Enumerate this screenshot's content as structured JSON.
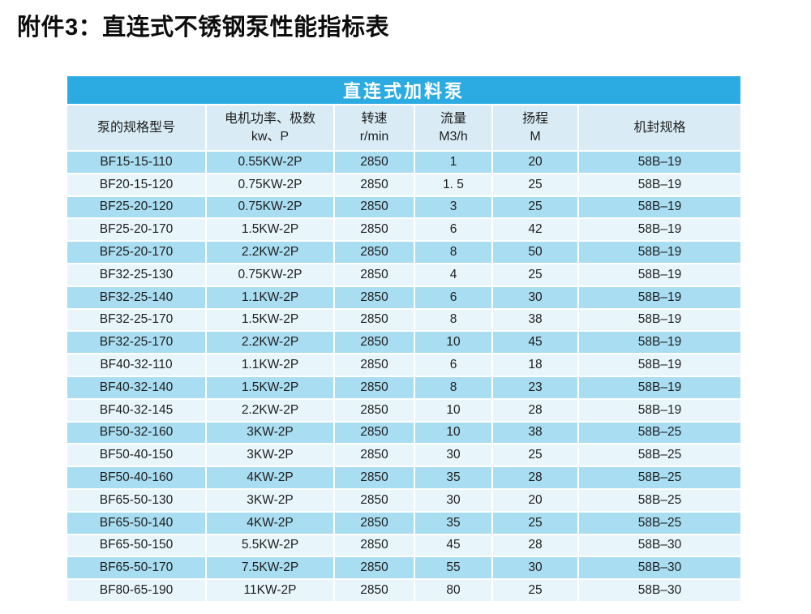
{
  "title": "附件3：直连式不锈钢泵性能指标表",
  "colors": {
    "banner_bg": "#2cabe2",
    "header_row_bg": "#d9ecf5",
    "row_dark_bg": "#a9ddf1",
    "row_light_bg": "#e8f6fc"
  },
  "table": {
    "banner": "直连式加料泵",
    "columns": [
      {
        "line1": "泵的规格型号",
        "line2": ""
      },
      {
        "line1": "电机功率、极数",
        "line2": "kw、P"
      },
      {
        "line1": "转速",
        "line2": "r/min"
      },
      {
        "line1": "流量",
        "line2": "M3/h"
      },
      {
        "line1": "扬程",
        "line2": "M"
      },
      {
        "line1": "机封规格",
        "line2": ""
      }
    ],
    "rows": [
      [
        "BF15-15-110",
        "0.55KW-2P",
        "2850",
        "1",
        "20",
        "58B–19"
      ],
      [
        "BF20-15-120",
        "0.75KW-2P",
        "2850",
        "1. 5",
        "25",
        "58B–19"
      ],
      [
        "BF25-20-120",
        "0.75KW-2P",
        "2850",
        "3",
        "25",
        "58B–19"
      ],
      [
        "BF25-20-170",
        "1.5KW-2P",
        "2850",
        "6",
        "42",
        "58B–19"
      ],
      [
        "BF25-20-170",
        "2.2KW-2P",
        "2850",
        "8",
        "50",
        "58B–19"
      ],
      [
        "BF32-25-130",
        "0.75KW-2P",
        "2850",
        "4",
        "25",
        "58B–19"
      ],
      [
        "BF32-25-140",
        "1.1KW-2P",
        "2850",
        "6",
        "30",
        "58B–19"
      ],
      [
        "BF32-25-170",
        "1.5KW-2P",
        "2850",
        "8",
        "38",
        "58B–19"
      ],
      [
        "BF32-25-170",
        "2.2KW-2P",
        "2850",
        "10",
        "45",
        "58B–19"
      ],
      [
        "BF40-32-110",
        "1.1KW-2P",
        "2850",
        "6",
        "18",
        "58B–19"
      ],
      [
        "BF40-32-140",
        "1.5KW-2P",
        "2850",
        "8",
        "23",
        "58B–19"
      ],
      [
        "BF40-32-145",
        "2.2KW-2P",
        "2850",
        "10",
        "28",
        "58B–19"
      ],
      [
        "BF50-32-160",
        "3KW-2P",
        "2850",
        "10",
        "38",
        "58B–25"
      ],
      [
        "BF50-40-150",
        "3KW-2P",
        "2850",
        "30",
        "25",
        "58B–25"
      ],
      [
        "BF50-40-160",
        "4KW-2P",
        "2850",
        "35",
        "28",
        "58B–25"
      ],
      [
        "BF65-50-130",
        "3KW-2P",
        "2850",
        "30",
        "20",
        "58B–25"
      ],
      [
        "BF65-50-140",
        "4KW-2P",
        "2850",
        "35",
        "25",
        "58B–25"
      ],
      [
        "BF65-50-150",
        "5.5KW-2P",
        "2850",
        "45",
        "28",
        "58B–30"
      ],
      [
        "BF65-50-170",
        "7.5KW-2P",
        "2850",
        "55",
        "30",
        "58B–30"
      ],
      [
        "BF80-65-190",
        "11KW-2P",
        "2850",
        "80",
        "25",
        "58B–30"
      ]
    ]
  }
}
